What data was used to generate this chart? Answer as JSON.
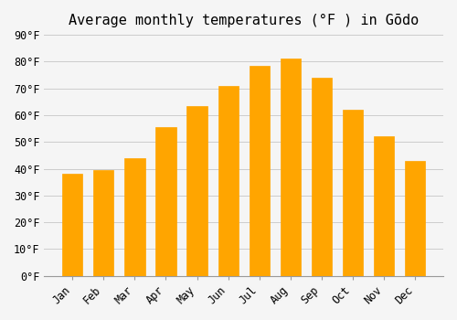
{
  "title": "Average monthly temperatures (°F ) in Gōdo",
  "months": [
    "Jan",
    "Feb",
    "Mar",
    "Apr",
    "May",
    "Jun",
    "Jul",
    "Aug",
    "Sep",
    "Oct",
    "Nov",
    "Dec"
  ],
  "values": [
    38,
    39.5,
    44,
    55.5,
    63.5,
    71,
    78.5,
    81,
    74,
    62,
    52,
    43
  ],
  "bar_color": "#FFA500",
  "bar_edge_color": "#FF8C00",
  "background_color": "#f5f5f5",
  "ylim": [
    0,
    90
  ],
  "yticks": [
    0,
    10,
    20,
    30,
    40,
    50,
    60,
    70,
    80,
    90
  ],
  "grid_color": "#cccccc",
  "title_fontsize": 11,
  "tick_fontsize": 8.5
}
